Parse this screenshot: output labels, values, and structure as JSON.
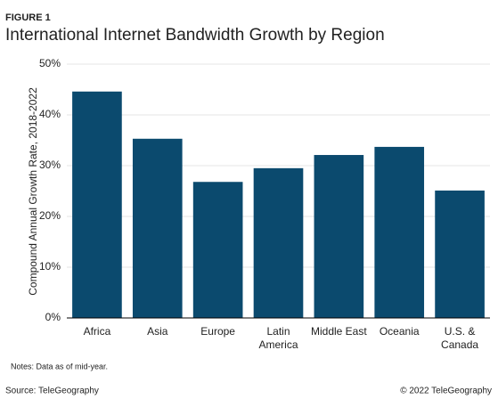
{
  "chart_data": {
    "type": "bar",
    "figure_label": "FIGURE 1",
    "title": "International Internet Bandwidth Growth by Region",
    "y_label": "Compound Annual Growth Rate, 2018-2022",
    "categories": [
      "Africa",
      "Asia",
      "Europe",
      "Latin America",
      "Middle East",
      "Oceania",
      "U.S. & Canada"
    ],
    "values": [
      44.6,
      35.3,
      26.8,
      29.5,
      32.1,
      33.7,
      25.1
    ],
    "color": "#0b4a6e",
    "ylim": [
      0,
      50
    ],
    "yticks": [
      {
        "value": 0,
        "label": "0%"
      },
      {
        "value": 10,
        "label": "10%"
      },
      {
        "value": 20,
        "label": "20%"
      },
      {
        "value": 30,
        "label": "30%"
      },
      {
        "value": 40,
        "label": "40%"
      },
      {
        "value": 50,
        "label": "50%"
      }
    ],
    "grid": true,
    "notes": "Notes: Data as of mid-year.",
    "source": "Source: TeleGeography",
    "copyright": "© 2022 TeleGeography"
  }
}
